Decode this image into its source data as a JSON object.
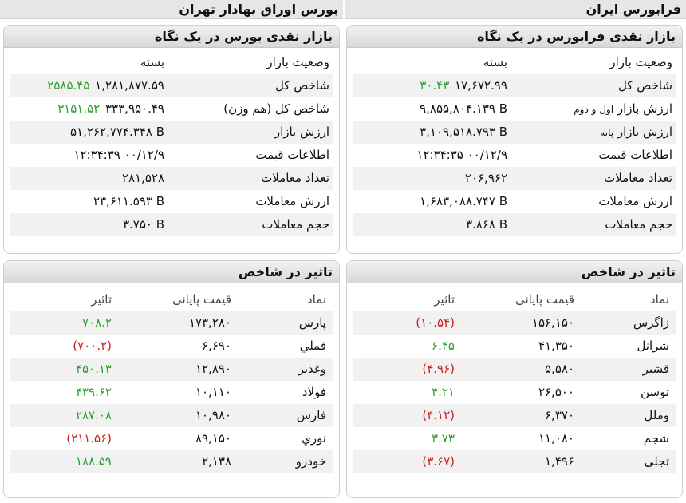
{
  "header": {
    "fara_title": "فرابورس ایران",
    "bourse_title": "بورس اوراق بهادار تهران"
  },
  "fara_market": {
    "title": "بازار نقدی فرابورس در یک نگاه",
    "rows": [
      {
        "label": "وضعیت بازار",
        "value": "بسته"
      },
      {
        "label": "شاخص کل",
        "value": "۱۷,۶۷۲.۹۹",
        "change": "۳۰.۴۳"
      },
      {
        "label": "ارزش بازار",
        "label_small": "اول و دوم",
        "value": "۹,۸۵۵,۸۰۴.۱۳۹ B"
      },
      {
        "label": "ارزش بازار",
        "label_small": "پایه",
        "value": "۳,۱۰۹,۵۱۸.۷۹۳ B"
      },
      {
        "label": "اطلاعات قیمت",
        "value": "۱۲:۳۴:۳۵ ۰۰/۱۲/۹"
      },
      {
        "label": "تعداد معاملات",
        "value": "۲۰۶,۹۶۲"
      },
      {
        "label": "ارزش معاملات",
        "value": "۱,۶۸۳,۰۸۸.۷۴۷ B"
      },
      {
        "label": "حجم معاملات",
        "value": "۳.۸۶۸ B"
      }
    ]
  },
  "bourse_market": {
    "title": "بازار نقدی بورس در یک نگاه",
    "rows": [
      {
        "label": "وضعیت بازار",
        "value": "بسته"
      },
      {
        "label": "شاخص کل",
        "value": "۱,۲۸۱,۸۷۷.۵۹",
        "change": "۲۵۸۵.۴۵"
      },
      {
        "label": "شاخص کل (هم وزن)",
        "value": "۳۳۳,۹۵۰.۴۹",
        "change": "۳۱۵۱.۵۲"
      },
      {
        "label": "ارزش بازار",
        "value": "۵۱,۲۶۲,۷۷۴.۳۴۸ B"
      },
      {
        "label": "اطلاعات قیمت",
        "value": "۱۲:۳۴:۳۹ ۰۰/۱۲/۹"
      },
      {
        "label": "تعداد معاملات",
        "value": "۲۸۱,۵۲۸"
      },
      {
        "label": "ارزش معاملات",
        "value": "۲۳,۶۱۱.۵۹۳ B"
      },
      {
        "label": "حجم معاملات",
        "value": "۳.۷۵۰ B"
      }
    ]
  },
  "fara_effect": {
    "title": "تاثیر در شاخص",
    "columns": {
      "symbol": "نماد",
      "price": "قیمت پایانی",
      "effect": "تاثیر"
    },
    "rows": [
      {
        "symbol": "زاگرس",
        "price": "۱۵۶,۱۵۰",
        "effect": "(۱۰.۵۴)",
        "dir": "neg"
      },
      {
        "symbol": "شرانل",
        "price": "۴۱,۳۵۰",
        "effect": "۶.۴۵",
        "dir": "pos"
      },
      {
        "symbol": "قشیر",
        "price": "۵,۵۸۰",
        "effect": "(۴.۹۶)",
        "dir": "neg"
      },
      {
        "symbol": "توسن",
        "price": "۲۶,۵۰۰",
        "effect": "۴.۲۱",
        "dir": "pos"
      },
      {
        "symbol": "وملل",
        "price": "۶,۳۷۰",
        "effect": "(۴.۱۲)",
        "dir": "neg"
      },
      {
        "symbol": "شجم",
        "price": "۱۱,۰۸۰",
        "effect": "۳.۷۳",
        "dir": "pos"
      },
      {
        "symbol": "تجلی",
        "price": "۱,۴۹۶",
        "effect": "(۳.۶۷)",
        "dir": "neg"
      }
    ]
  },
  "bourse_effect": {
    "title": "تاثیر در شاخص",
    "columns": {
      "symbol": "نماد",
      "price": "قیمت پایانی",
      "effect": "تاثیر"
    },
    "rows": [
      {
        "symbol": "پارس",
        "price": "۱۷۳,۲۸۰",
        "effect": "۷۰۸.۲",
        "dir": "pos"
      },
      {
        "symbol": "فملي",
        "price": "۶,۶۹۰",
        "effect": "(۷۰۰.۲)",
        "dir": "neg"
      },
      {
        "symbol": "وغدیر",
        "price": "۱۲,۸۹۰",
        "effect": "۴۵۰.۱۳",
        "dir": "pos"
      },
      {
        "symbol": "فولاد",
        "price": "۱۰,۱۱۰",
        "effect": "۴۳۹.۶۲",
        "dir": "pos"
      },
      {
        "symbol": "فارس",
        "price": "۱۰,۹۸۰",
        "effect": "۲۸۷.۰۸",
        "dir": "pos"
      },
      {
        "symbol": "نوري",
        "price": "۸۹,۱۵۰",
        "effect": "(۲۱۱.۵۶)",
        "dir": "neg"
      },
      {
        "symbol": "خودرو",
        "price": "۲,۱۳۸",
        "effect": "۱۸۸.۵۹",
        "dir": "pos"
      }
    ]
  },
  "colors": {
    "positive": "#2e9e2e",
    "negative": "#cc1f1f"
  }
}
